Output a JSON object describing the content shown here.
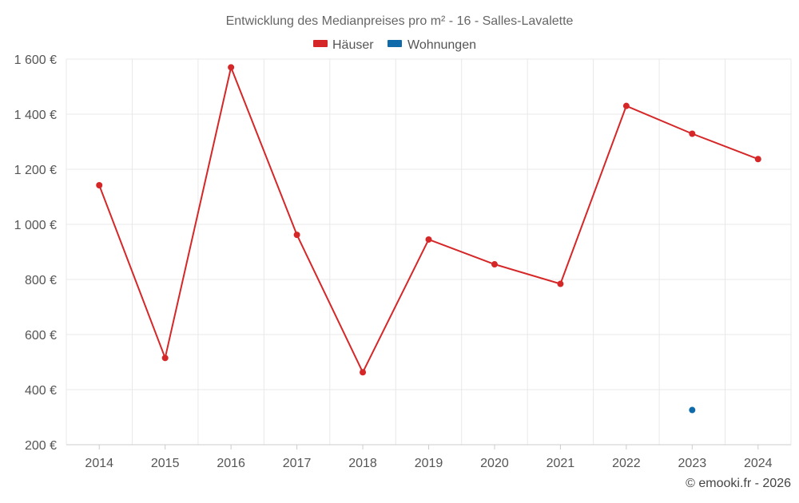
{
  "chart_data": {
    "type": "line",
    "title": "Entwicklung des Medianpreises pro m² - 16 - Salles-Lavalette",
    "x": [
      "2014",
      "2015",
      "2016",
      "2017",
      "2018",
      "2019",
      "2020",
      "2021",
      "2022",
      "2023",
      "2024"
    ],
    "series": [
      {
        "name": "Häuser",
        "color": "#d62728",
        "values": [
          1142,
          515,
          1570,
          962,
          463,
          945,
          855,
          784,
          1430,
          1329,
          1237
        ]
      },
      {
        "name": "Wohnungen",
        "color": "#0e6aa8",
        "values": [
          null,
          null,
          null,
          null,
          null,
          null,
          null,
          null,
          null,
          326,
          null
        ]
      }
    ],
    "y_ticks": [
      "200 €",
      "400 €",
      "600 €",
      "800 €",
      "1 000 €",
      "1 200 €",
      "1 400 €",
      "1 600 €"
    ],
    "y_tick_values": [
      200,
      400,
      600,
      800,
      1000,
      1200,
      1400,
      1600
    ],
    "ylim": [
      200,
      1600
    ],
    "grid": true,
    "legend": "top-center",
    "credit": "© emooki.fr - 2026"
  }
}
